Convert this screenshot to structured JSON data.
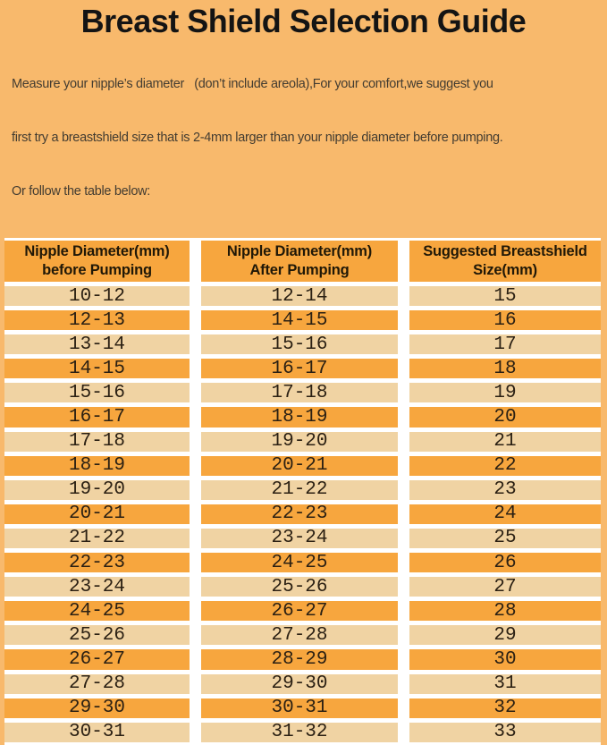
{
  "page": {
    "title": "Breast Shield Selection Guide",
    "intro_lines": [
      "Measure your nipple’s diameter   (don’t include areola),For your comfort,we suggest you",
      "first try a breastshield size that is 2-4mm larger than your nipple diameter before pumping.",
      "Or follow the table below:"
    ]
  },
  "colors": {
    "page_background": "#F8B96C",
    "row_orange": "#F7A63E",
    "row_light": "#F0D3A3",
    "separator": "#FFFFFF",
    "title_text": "#141414",
    "body_text": "#433C31",
    "header_text": "#201807",
    "cell_text": "#2B2013"
  },
  "table": {
    "headers": [
      {
        "line1": "Nipple Diameter(mm)",
        "line2": "before Pumping"
      },
      {
        "line1": "Nipple Diameter(mm)",
        "line2": "After Pumping"
      },
      {
        "line1": "Suggested Breastshield",
        "line2": "Size(mm)"
      }
    ],
    "rows": [
      [
        "10-12",
        "12-14",
        "15"
      ],
      [
        "12-13",
        "14-15",
        "16"
      ],
      [
        "13-14",
        "15-16",
        "17"
      ],
      [
        "14-15",
        "16-17",
        "18"
      ],
      [
        "15-16",
        "17-18",
        "19"
      ],
      [
        "16-17",
        "18-19",
        "20"
      ],
      [
        "17-18",
        "19-20",
        "21"
      ],
      [
        "18-19",
        "20-21",
        "22"
      ],
      [
        "19-20",
        "21-22",
        "23"
      ],
      [
        "20-21",
        "22-23",
        "24"
      ],
      [
        "21-22",
        "23-24",
        "25"
      ],
      [
        "22-23",
        "24-25",
        "26"
      ],
      [
        "23-24",
        "25-26",
        "27"
      ],
      [
        "24-25",
        "26-27",
        "28"
      ],
      [
        "25-26",
        "27-28",
        "29"
      ],
      [
        "26-27",
        "28-29",
        "30"
      ],
      [
        "27-28",
        "29-30",
        "31"
      ],
      [
        "29-30",
        "30-31",
        "32"
      ],
      [
        "30-31",
        "31-32",
        "33"
      ]
    ]
  }
}
